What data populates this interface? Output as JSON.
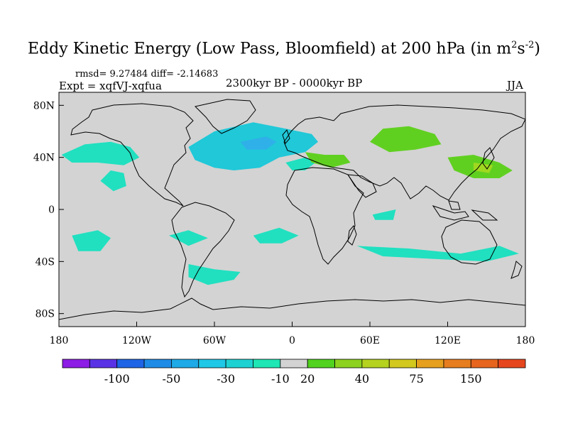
{
  "title": {
    "prefix": "Eddy Kinetic Energy (Low Pass, Bloomfield) at 200 hPa (in m",
    "sup1": "2",
    "mid": "s",
    "sup2": "-2",
    "suffix": ")"
  },
  "stats": "rmsd= 9.27484 diff= -2.14683",
  "experiment": "Expt = xqfVJ-xqfua",
  "period": "2300kyr BP - 0000kyr BP",
  "season": "JJA",
  "map": {
    "projection": "cylindrical-equidistant",
    "lon_range": [
      -180,
      180
    ],
    "lat_range": [
      -90,
      90
    ],
    "background_color": "#d3d3d3",
    "coastline_color": "#000000",
    "lat_ticks": [
      {
        "lat": 80,
        "label": "80N"
      },
      {
        "lat": 40,
        "label": "40N"
      },
      {
        "lat": 0,
        "label": "0"
      },
      {
        "lat": -40,
        "label": "40S"
      },
      {
        "lat": -80,
        "label": "80S"
      }
    ],
    "lon_ticks": [
      {
        "lon": -180,
        "label": "180"
      },
      {
        "lon": -120,
        "label": "120W"
      },
      {
        "lon": -60,
        "label": "60W"
      },
      {
        "lon": 0,
        "label": "0"
      },
      {
        "lon": 60,
        "label": "60E"
      },
      {
        "lon": 120,
        "label": "120E"
      },
      {
        "lon": 180,
        "label": "180"
      }
    ],
    "anomaly_regions": [
      {
        "name": "north-atlantic-negative",
        "color": "#20c8d8",
        "points": [
          [
            -80,
            48
          ],
          [
            -60,
            60
          ],
          [
            -30,
            67
          ],
          [
            -5,
            62
          ],
          [
            15,
            58
          ],
          [
            20,
            52
          ],
          [
            10,
            44
          ],
          [
            -10,
            40
          ],
          [
            -25,
            32
          ],
          [
            -45,
            30
          ],
          [
            -60,
            32
          ],
          [
            -75,
            38
          ]
        ]
      },
      {
        "name": "north-atlantic-core",
        "color": "#30b0e8",
        "points": [
          [
            -40,
            52
          ],
          [
            -20,
            56
          ],
          [
            -12,
            52
          ],
          [
            -20,
            46
          ],
          [
            -35,
            46
          ]
        ]
      },
      {
        "name": "north-pacific-negative",
        "color": "#20e0c0",
        "points": [
          [
            -178,
            42
          ],
          [
            -160,
            50
          ],
          [
            -140,
            52
          ],
          [
            -125,
            48
          ],
          [
            -118,
            40
          ],
          [
            -130,
            34
          ],
          [
            -150,
            36
          ],
          [
            -170,
            36
          ]
        ]
      },
      {
        "name": "east-pacific-negative",
        "color": "#20e0c0",
        "points": [
          [
            -148,
            22
          ],
          [
            -140,
            30
          ],
          [
            -130,
            28
          ],
          [
            -128,
            18
          ],
          [
            -138,
            14
          ]
        ]
      },
      {
        "name": "mediterranean-negative",
        "color": "#20e0c0",
        "points": [
          [
            -5,
            36
          ],
          [
            10,
            40
          ],
          [
            18,
            36
          ],
          [
            10,
            30
          ],
          [
            0,
            30
          ]
        ]
      },
      {
        "name": "south-pacific-negative",
        "color": "#20e0c0",
        "points": [
          [
            -170,
            -20
          ],
          [
            -150,
            -16
          ],
          [
            -140,
            -22
          ],
          [
            -148,
            -32
          ],
          [
            -165,
            -32
          ]
        ]
      },
      {
        "name": "south-atlantic-negative",
        "color": "#20e0c0",
        "points": [
          [
            -95,
            -20
          ],
          [
            -80,
            -16
          ],
          [
            -65,
            -22
          ],
          [
            -80,
            -28
          ]
        ]
      },
      {
        "name": "tropical-atlantic-negative",
        "color": "#20e0c0",
        "points": [
          [
            -30,
            -20
          ],
          [
            -10,
            -14
          ],
          [
            5,
            -20
          ],
          [
            -8,
            -26
          ],
          [
            -25,
            -26
          ]
        ]
      },
      {
        "name": "southern-ocean-atlantic-negative",
        "color": "#20e0c0",
        "points": [
          [
            -80,
            -42
          ],
          [
            -60,
            -46
          ],
          [
            -40,
            -48
          ],
          [
            -45,
            -54
          ],
          [
            -65,
            -58
          ],
          [
            -80,
            -52
          ]
        ]
      },
      {
        "name": "southern-ocean-indian-negative",
        "color": "#20e0c0",
        "points": [
          [
            50,
            -28
          ],
          [
            90,
            -30
          ],
          [
            130,
            -34
          ],
          [
            160,
            -28
          ],
          [
            175,
            -34
          ],
          [
            150,
            -40
          ],
          [
            110,
            -38
          ],
          [
            70,
            -36
          ]
        ]
      },
      {
        "name": "indian-ocean-negative",
        "color": "#20e0c0",
        "points": [
          [
            62,
            -4
          ],
          [
            80,
            0
          ],
          [
            78,
            -8
          ],
          [
            64,
            -8
          ]
        ]
      },
      {
        "name": "eastern-europe-positive",
        "color": "#60d020",
        "points": [
          [
            10,
            44
          ],
          [
            25,
            42
          ],
          [
            40,
            42
          ],
          [
            45,
            36
          ],
          [
            30,
            32
          ],
          [
            15,
            36
          ]
        ]
      },
      {
        "name": "asia-positive",
        "color": "#60d020",
        "points": [
          [
            70,
            62
          ],
          [
            90,
            64
          ],
          [
            110,
            58
          ],
          [
            115,
            50
          ],
          [
            95,
            46
          ],
          [
            75,
            44
          ],
          [
            60,
            52
          ]
        ]
      },
      {
        "name": "east-asia-positive",
        "color": "#60d020",
        "points": [
          [
            120,
            40
          ],
          [
            140,
            42
          ],
          [
            160,
            36
          ],
          [
            170,
            30
          ],
          [
            160,
            24
          ],
          [
            140,
            24
          ],
          [
            125,
            30
          ]
        ]
      },
      {
        "name": "east-asia-core",
        "color": "#a0d820",
        "points": [
          [
            140,
            36
          ],
          [
            155,
            34
          ],
          [
            152,
            28
          ],
          [
            140,
            30
          ]
        ]
      }
    ]
  },
  "colorbar": {
    "colors": [
      "#8c1ce6",
      "#5a32e6",
      "#1e64e6",
      "#1e8ce6",
      "#1eaae6",
      "#1ec8e6",
      "#1ed2d2",
      "#1ee6b4",
      "#d3d3d3",
      "#50d21e",
      "#8cd21e",
      "#b4d21e",
      "#d2c81e",
      "#e6a01e",
      "#e67d1e",
      "#e6641e",
      "#e6461e"
    ],
    "labels": [
      "-100",
      "-50",
      "-30",
      "-10",
      "20",
      "40",
      "75",
      "150"
    ]
  }
}
